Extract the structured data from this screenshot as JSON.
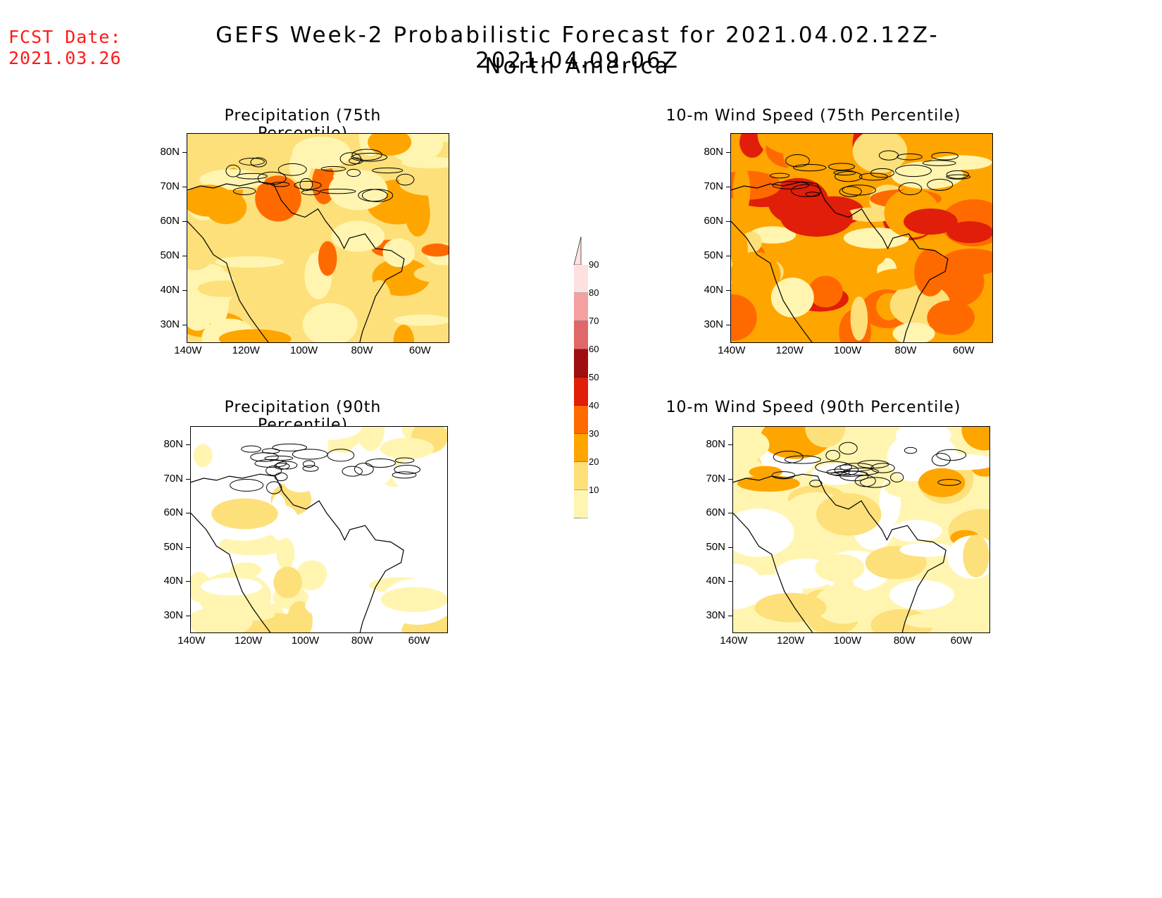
{
  "header": {
    "fcst_label": "FCST Date:",
    "fcst_date": "2021.03.26",
    "title": "GEFS Week-2 Probabilistic Forecast for 2021.04.02.12Z-2021.04.09.06Z",
    "subtitle": "North America"
  },
  "axes": {
    "lat_ticks": [
      "80N",
      "70N",
      "60N",
      "50N",
      "40N",
      "30N"
    ],
    "lon_ticks": [
      "140W",
      "120W",
      "100W",
      "80W",
      "60W"
    ]
  },
  "panels": [
    {
      "id": "precip75",
      "title": "Precipitation (75th Percentile)",
      "level": "high"
    },
    {
      "id": "wind75",
      "title": "10-m Wind Speed (75th Percentile)",
      "level": "veryhigh"
    },
    {
      "id": "precip90",
      "title": "Precipitation (90th Percentile)",
      "level": "low"
    },
    {
      "id": "wind90",
      "title": "10-m Wind Speed (90th Percentile)",
      "level": "lowmid"
    }
  ],
  "colorbar": {
    "labels": [
      "90",
      "80",
      "70",
      "60",
      "50",
      "40",
      "30",
      "20",
      "10"
    ],
    "colors": [
      "#fde0e0",
      "#f4a0a0",
      "#e06868",
      "#a00f0f",
      "#e01e0a",
      "#ff6a00",
      "#ffa500",
      "#fde07a",
      "#fff5b0"
    ]
  }
}
